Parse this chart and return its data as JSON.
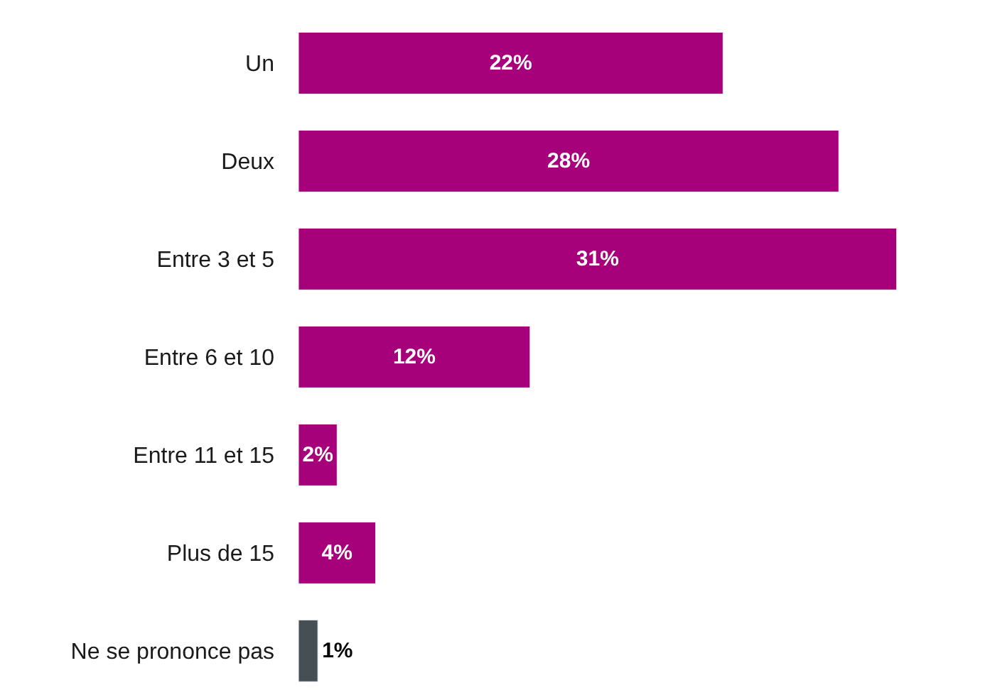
{
  "chart_data": {
    "type": "bar",
    "orientation": "horizontal",
    "categories": [
      "Un",
      "Deux",
      "Entre 3 et 5",
      "Entre 6 et 10",
      "Entre 11 et 15",
      "Plus de 15",
      "Ne se prononce pas"
    ],
    "values": [
      22,
      28,
      31,
      12,
      2,
      4,
      1
    ],
    "colors": [
      "#a6007a",
      "#a6007a",
      "#a6007a",
      "#a6007a",
      "#a6007a",
      "#a6007a",
      "#454f54"
    ],
    "value_labels": [
      "22%",
      "28%",
      "31%",
      "12%",
      "2%",
      "4%",
      "1%"
    ]
  }
}
